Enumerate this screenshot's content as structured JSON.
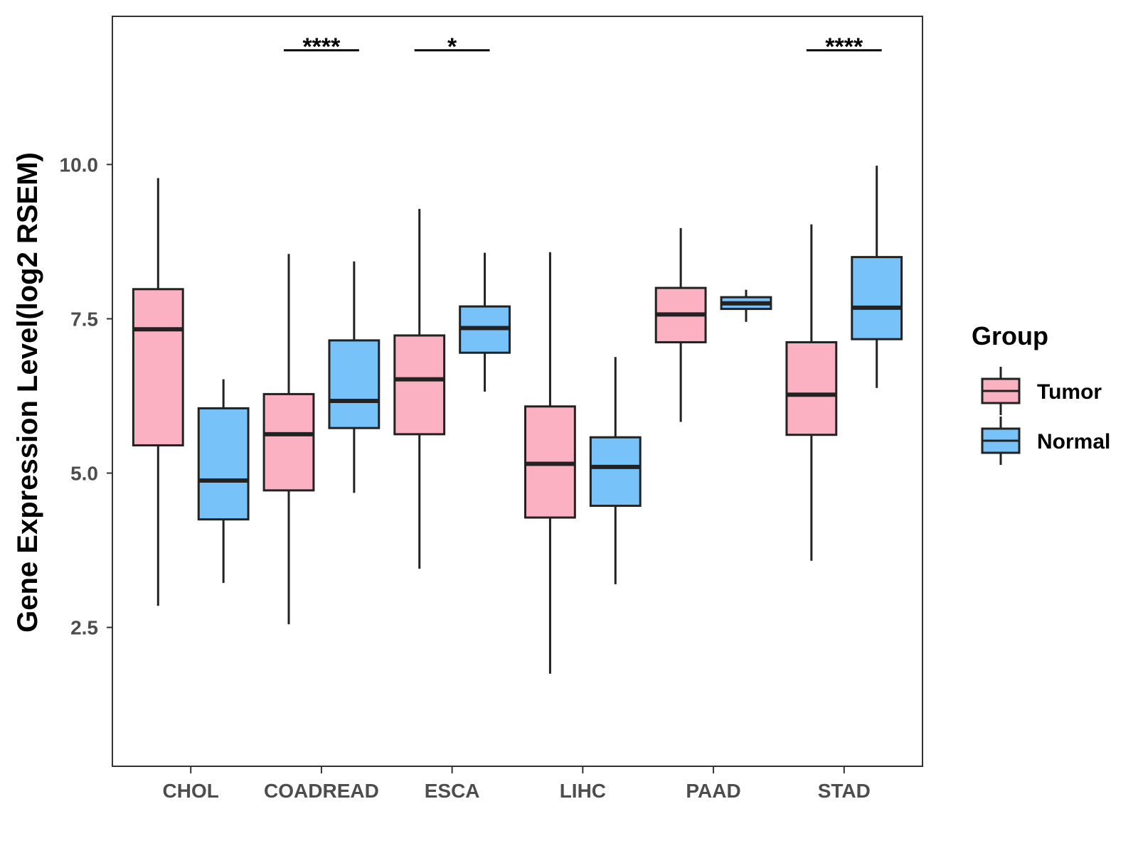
{
  "chart_data": {
    "type": "boxplot",
    "ylabel": "Gene Expression Level(log2 RSEM)",
    "xlabel": "",
    "ylim": [
      0.25,
      12.4
    ],
    "yticks": [
      2.5,
      5.0,
      7.5,
      10.0
    ],
    "ytick_labels": [
      "2.5",
      "5.0",
      "7.5",
      "10.0"
    ],
    "categories": [
      "CHOL",
      "COADREAD",
      "ESCA",
      "LIHC",
      "PAAD",
      "STAD"
    ],
    "legend": {
      "title": "Group",
      "position": "right"
    },
    "series": [
      {
        "name": "Tumor",
        "color": "#FBB1C1",
        "boxes": [
          {
            "min": 2.85,
            "q1": 5.45,
            "median": 7.33,
            "q3": 7.98,
            "max": 9.78
          },
          {
            "min": 2.55,
            "q1": 4.72,
            "median": 5.63,
            "q3": 6.28,
            "max": 8.55
          },
          {
            "min": 3.45,
            "q1": 5.63,
            "median": 6.52,
            "q3": 7.23,
            "max": 9.28
          },
          {
            "min": 1.75,
            "q1": 4.28,
            "median": 5.15,
            "q3": 6.08,
            "max": 8.58
          },
          {
            "min": 5.83,
            "q1": 7.12,
            "median": 7.57,
            "q3": 8.0,
            "max": 8.97
          },
          {
            "min": 3.58,
            "q1": 5.62,
            "median": 6.27,
            "q3": 7.12,
            "max": 9.03
          }
        ]
      },
      {
        "name": "Normal",
        "color": "#77C2F8",
        "boxes": [
          {
            "min": 3.22,
            "q1": 4.25,
            "median": 4.88,
            "q3": 6.05,
            "max": 6.52
          },
          {
            "min": 4.68,
            "q1": 5.73,
            "median": 6.17,
            "q3": 7.15,
            "max": 8.43
          },
          {
            "min": 6.32,
            "q1": 6.95,
            "median": 7.35,
            "q3": 7.7,
            "max": 8.57
          },
          {
            "min": 3.2,
            "q1": 4.47,
            "median": 5.1,
            "q3": 5.58,
            "max": 6.88
          },
          {
            "min": 7.45,
            "q1": 7.66,
            "median": 7.75,
            "q3": 7.85,
            "max": 7.97
          },
          {
            "min": 6.38,
            "q1": 7.17,
            "median": 7.68,
            "q3": 8.5,
            "max": 9.98
          }
        ]
      }
    ],
    "significance": [
      {
        "category": "COADREAD",
        "label": "****",
        "y": 11.85
      },
      {
        "category": "ESCA",
        "label": "*",
        "y": 11.85
      },
      {
        "category": "STAD",
        "label": "****",
        "y": 11.85
      }
    ]
  }
}
